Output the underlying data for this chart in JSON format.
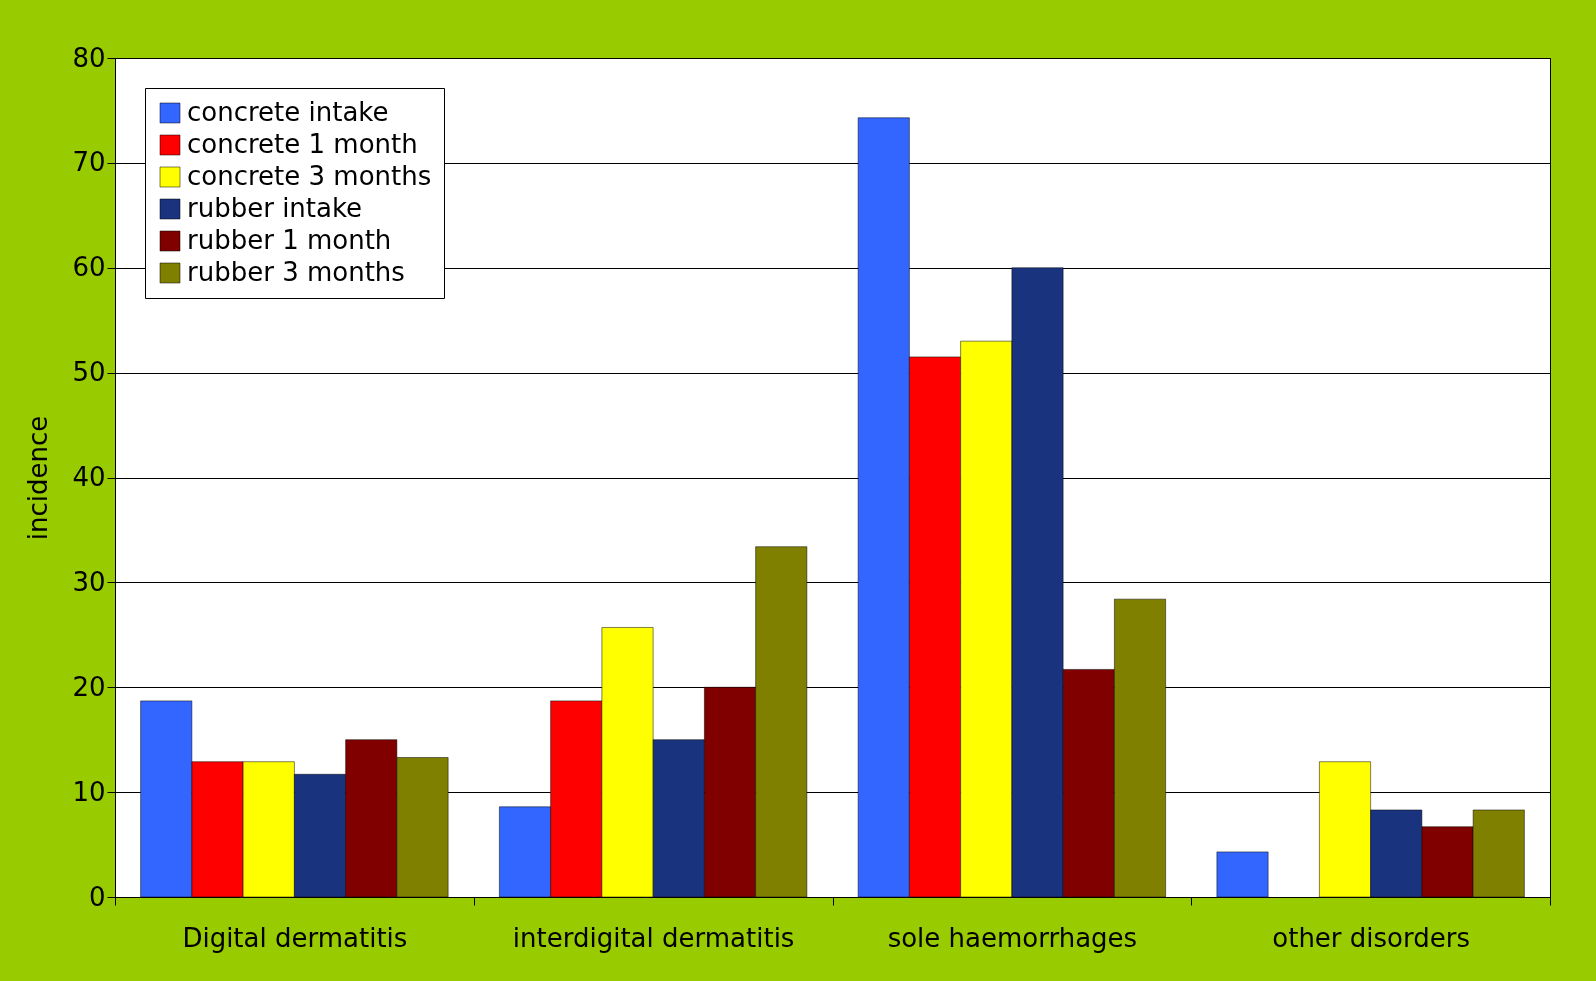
{
  "chart_data": {
    "type": "bar",
    "ylabel": "incidence",
    "categories": [
      "Digital dermatitis",
      "interdigital dermatitis",
      "sole haemorrhages",
      "other disorders"
    ],
    "series": [
      {
        "name": "concrete intake",
        "color": "#3366ff",
        "values": [
          18.7,
          8.6,
          74.3,
          4.3
        ]
      },
      {
        "name": "concrete 1 month",
        "color": "#ff0000",
        "values": [
          12.9,
          18.7,
          51.5,
          null
        ]
      },
      {
        "name": "concrete 3 months",
        "color": "#ffff00",
        "values": [
          12.9,
          25.7,
          53.0,
          12.9
        ]
      },
      {
        "name": "rubber intake",
        "color": "#1a337f",
        "values": [
          11.7,
          15.0,
          60.0,
          8.3
        ]
      },
      {
        "name": "rubber 1 month",
        "color": "#800000",
        "values": [
          15.0,
          20.0,
          21.7,
          6.7
        ]
      },
      {
        "name": "rubber 3 months",
        "color": "#808000",
        "values": [
          13.3,
          33.4,
          28.4,
          8.3
        ]
      }
    ],
    "ylim": [
      0,
      80
    ],
    "yticks": [
      0,
      10,
      20,
      30,
      40,
      50,
      60,
      70,
      80
    ],
    "grid": "y",
    "legend": "top left"
  }
}
